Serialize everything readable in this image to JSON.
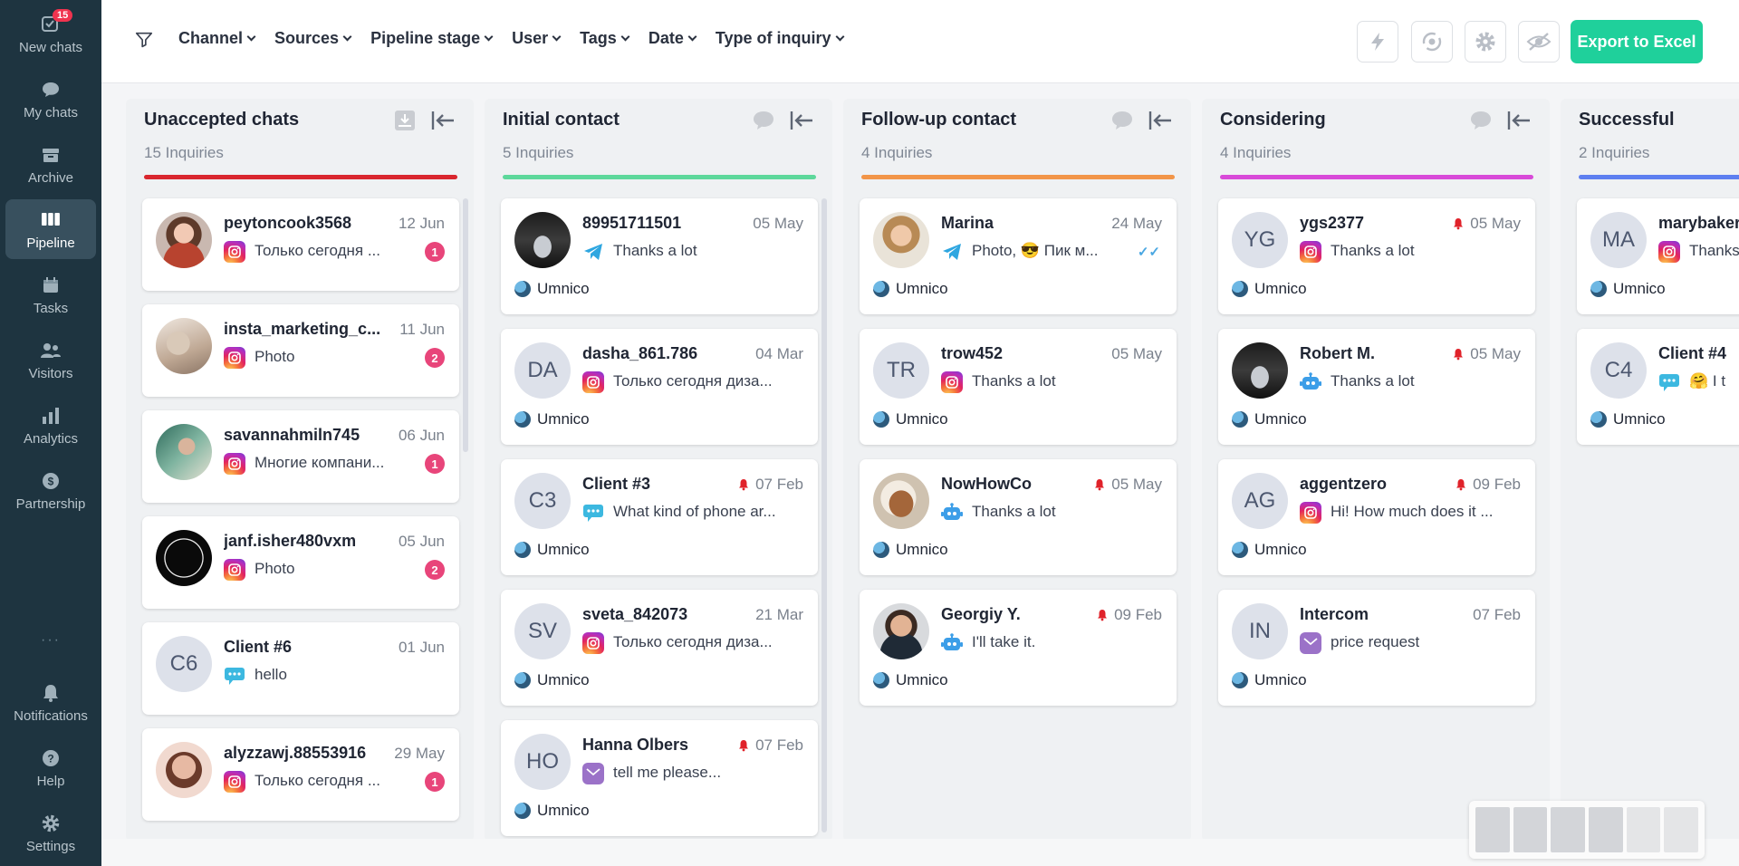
{
  "sidebar": {
    "items": [
      {
        "label": "New chats",
        "icon": "new-chats-icon",
        "badge": "15"
      },
      {
        "label": "My chats",
        "icon": "chat-bubble-icon"
      },
      {
        "label": "Archive",
        "icon": "archive-icon"
      },
      {
        "label": "Pipeline",
        "icon": "pipeline-icon",
        "active": true
      },
      {
        "label": "Tasks",
        "icon": "tasks-icon"
      },
      {
        "label": "Visitors",
        "icon": "visitors-icon"
      },
      {
        "label": "Analytics",
        "icon": "analytics-icon"
      },
      {
        "label": "Partnership",
        "icon": "partnership-icon"
      }
    ],
    "dots": "···",
    "bottom_items": [
      {
        "label": "Notifications",
        "icon": "bell-icon"
      },
      {
        "label": "Help",
        "icon": "help-icon"
      },
      {
        "label": "Settings",
        "icon": "gear-icon"
      }
    ]
  },
  "toolbar": {
    "filters": [
      "Channel",
      "Sources",
      "Pipeline stage",
      "User",
      "Tags",
      "Date",
      "Type of inquiry"
    ],
    "export_label": "Export to Excel",
    "buttons": [
      "lightning-icon",
      "sync-icon",
      "gear-icon",
      "hide-icon"
    ]
  },
  "colors": {
    "accent": "#1fd09b",
    "sidebar": "#1e3440",
    "unaccepted": "#d9262e",
    "initial": "#5dd89b",
    "followup": "#f29548",
    "considering": "#d84ad8",
    "successful": "#5d7ff0"
  },
  "columns": [
    {
      "title": "Unaccepted chats",
      "count": "15 Inquiries",
      "color": "#d9262e",
      "cards": [
        {
          "name": "peytoncook3568",
          "date": "12 Jun",
          "channel": "instagram",
          "message": "Только сегодня ...",
          "unread": "1",
          "avatar": "photo",
          "photo": "a1"
        },
        {
          "name": "insta_marketing_c...",
          "date": "11 Jun",
          "channel": "instagram",
          "message": "Photo",
          "unread": "2",
          "avatar": "photo",
          "photo": "a2"
        },
        {
          "name": "savannahmiln745",
          "date": "06 Jun",
          "channel": "instagram",
          "message": "Многие компани...",
          "unread": "1",
          "avatar": "photo",
          "photo": "a3"
        },
        {
          "name": "janf.isher480vxm",
          "date": "05 Jun",
          "channel": "instagram",
          "message": "Photo",
          "unread": "2",
          "avatar": "photo",
          "photo": "a4"
        },
        {
          "name": "Client #6",
          "date": "01 Jun",
          "channel": "chat",
          "message": "hello",
          "avatar": "initials",
          "initials": "C6"
        },
        {
          "name": "alyzzawj.88553916",
          "date": "29 May",
          "channel": "instagram",
          "message": "Только сегодня ...",
          "unread": "1",
          "avatar": "photo",
          "photo": "a5"
        }
      ]
    },
    {
      "title": "Initial contact",
      "count": "5 Inquiries",
      "color": "#5dd89b",
      "cards": [
        {
          "name": "89951711501",
          "date": "05 May",
          "channel": "telegram",
          "message": "Thanks a lot",
          "footer": "Umnico",
          "avatar": "photo",
          "photo": "car"
        },
        {
          "name": "dasha_861.786",
          "date": "04 Mar",
          "channel": "instagram",
          "message": "Только сегодня диза...",
          "footer": "Umnico",
          "avatar": "initials",
          "initials": "DA"
        },
        {
          "name": "Client #3",
          "date": "07 Feb",
          "bell": true,
          "channel": "chat",
          "message": "What kind of phone ar...",
          "footer": "Umnico",
          "avatar": "initials",
          "initials": "C3"
        },
        {
          "name": "sveta_842073",
          "date": "21 Mar",
          "channel": "instagram",
          "message": "Только сегодня диза...",
          "footer": "Umnico",
          "avatar": "initials",
          "initials": "SV"
        },
        {
          "name": "Hanna Olbers",
          "date": "07 Feb",
          "bell": true,
          "channel": "email",
          "message": "tell me please...",
          "footer": "Umnico",
          "avatar": "initials",
          "initials": "HO"
        }
      ]
    },
    {
      "title": "Follow-up contact",
      "count": "4 Inquiries",
      "color": "#f29548",
      "cards": [
        {
          "name": "Marina",
          "date": "24 May",
          "channel": "telegram",
          "message": "Photo, 😎 Пик м...",
          "footer": "Umnico",
          "avatar": "photo",
          "photo": "marina",
          "read": true
        },
        {
          "name": "trow452",
          "date": "05 May",
          "channel": "instagram",
          "message": "Thanks a lot",
          "footer": "Umnico",
          "avatar": "initials",
          "initials": "TR"
        },
        {
          "name": "NowHowCo",
          "date": "05 May",
          "bell": true,
          "channel": "bot",
          "message": "Thanks a lot",
          "footer": "Umnico",
          "avatar": "photo",
          "photo": "dog"
        },
        {
          "name": "Georgiy Y.",
          "date": "09 Feb",
          "bell": true,
          "channel": "bot",
          "message": "I'll take it.",
          "footer": "Umnico",
          "avatar": "photo",
          "photo": "man"
        }
      ]
    },
    {
      "title": "Considering",
      "count": "4 Inquiries",
      "color": "#d84ad8",
      "cards": [
        {
          "name": "ygs2377",
          "date": "05 May",
          "bell": true,
          "channel": "instagram",
          "message": "Thanks a lot",
          "footer": "Umnico",
          "avatar": "initials",
          "initials": "YG"
        },
        {
          "name": "Robert M.",
          "date": "05 May",
          "bell": true,
          "channel": "bot",
          "message": "Thanks a lot",
          "footer": "Umnico",
          "avatar": "photo",
          "photo": "car"
        },
        {
          "name": "aggentzero",
          "date": "09 Feb",
          "bell": true,
          "channel": "instagram",
          "message": "Hi! How much does it ...",
          "footer": "Umnico",
          "avatar": "initials",
          "initials": "AG"
        },
        {
          "name": "Intercom",
          "date": "07 Feb",
          "channel": "email",
          "message": "price request",
          "footer": "Umnico",
          "avatar": "initials",
          "initials": "IN"
        }
      ]
    },
    {
      "title": "Successful",
      "count": "2 Inquiries",
      "color": "#5d7ff0",
      "cards": [
        {
          "name": "marybaker",
          "date": "",
          "channel": "instagram",
          "message": "Thanks a lot",
          "footer": "Umnico",
          "avatar": "initials",
          "initials": "MA"
        },
        {
          "name": "Client #4",
          "date": "",
          "channel": "chat",
          "message": "🤗 I t",
          "footer": "Umnico",
          "avatar": "initials",
          "initials": "C4"
        }
      ]
    }
  ]
}
